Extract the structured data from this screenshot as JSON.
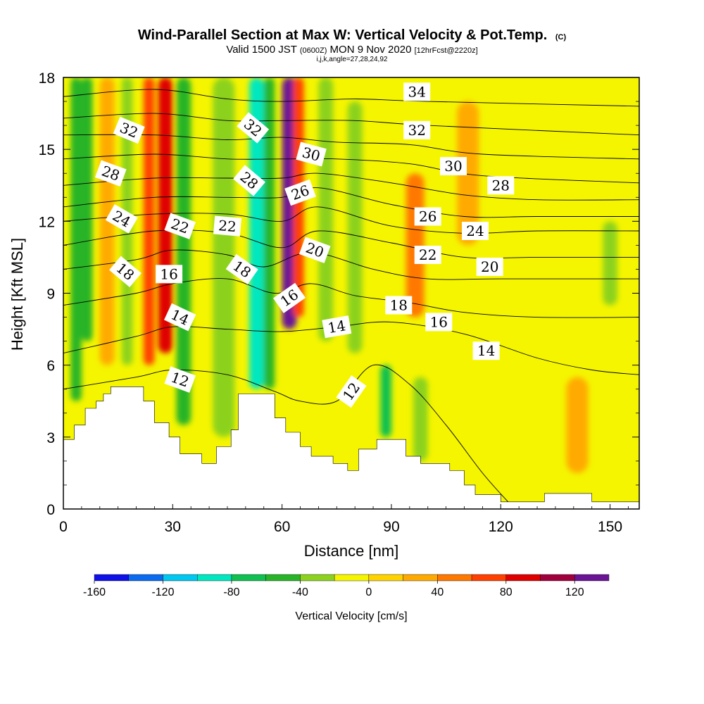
{
  "chart_data": {
    "type": "heatmap",
    "title": "Wind-Parallel Section at Max W: Vertical Velocity & Pot.Temp.",
    "title_mark": "(C)",
    "subtitle_parts": {
      "valid": "Valid 1500 JST",
      "utc": "(0600Z)",
      "date": "MON 9 Nov 2020",
      "fcst": "[12hrFcst@2220z]"
    },
    "subtitle2": "i,j,k,angle=27,28,24,92",
    "xlabel": "Distance [nm]",
    "ylabel": "Height [Kft MSL]",
    "xlim": [
      0,
      158
    ],
    "ylim": [
      0,
      18
    ],
    "x_ticks": [
      "0",
      "30",
      "60",
      "90",
      "120",
      "150"
    ],
    "y_ticks": [
      "0",
      "3",
      "6",
      "9",
      "12",
      "15",
      "18"
    ],
    "colorbar": {
      "label": "Vertical Velocity [cm/s]",
      "tick_labels": [
        "-160",
        "-120",
        "-80",
        "-40",
        "0",
        "40",
        "80",
        "120"
      ],
      "tick_values": [
        -160,
        -120,
        -80,
        -40,
        0,
        40,
        80,
        120
      ],
      "range": [
        -160,
        140
      ],
      "colors": [
        "#1010e8",
        "#0a6af0",
        "#00c8f0",
        "#00e8c0",
        "#10c050",
        "#28b428",
        "#8cd21e",
        "#f5f500",
        "#ffd200",
        "#ffaa00",
        "#ff7800",
        "#ff4000",
        "#e00000",
        "#a0003c",
        "#6a1496"
      ]
    },
    "velocity_columns": [
      {
        "x": 2,
        "w": 3,
        "ymin": 4.5,
        "ymax": 18,
        "value": -50
      },
      {
        "x": 5,
        "w": 3,
        "ymin": 7,
        "ymax": 18,
        "value": -60
      },
      {
        "x": 10,
        "w": 4,
        "ymin": 6,
        "ymax": 18,
        "value": 20
      },
      {
        "x": 16,
        "w": 3,
        "ymin": 6,
        "ymax": 18,
        "value": -40
      },
      {
        "x": 22,
        "w": 3,
        "ymin": 6,
        "ymax": 18,
        "value": 60
      },
      {
        "x": 26,
        "w": 4,
        "ymin": 6.5,
        "ymax": 18,
        "value": 95
      },
      {
        "x": 31,
        "w": 4,
        "ymin": 3.5,
        "ymax": 18,
        "value": -45
      },
      {
        "x": 41,
        "w": 6,
        "ymin": 3,
        "ymax": 18,
        "value": -35
      },
      {
        "x": 51,
        "w": 4,
        "ymin": 5,
        "ymax": 18,
        "value": -85
      },
      {
        "x": 55,
        "w": 3,
        "ymin": 5,
        "ymax": 18,
        "value": -50
      },
      {
        "x": 60,
        "w": 4,
        "ymin": 7.5,
        "ymax": 18,
        "value": 125
      },
      {
        "x": 63,
        "w": 3,
        "ymin": 8,
        "ymax": 18,
        "value": 70
      },
      {
        "x": 70,
        "w": 4,
        "ymin": 7,
        "ymax": 18,
        "value": -30
      },
      {
        "x": 78,
        "w": 4,
        "ymin": 6.5,
        "ymax": 17,
        "value": -25
      },
      {
        "x": 87,
        "w": 3,
        "ymin": 3,
        "ymax": 6,
        "value": -70
      },
      {
        "x": 94,
        "w": 5,
        "ymin": 8,
        "ymax": 14,
        "value": 45
      },
      {
        "x": 96,
        "w": 4,
        "ymin": 2,
        "ymax": 5.5,
        "value": -30
      },
      {
        "x": 108,
        "w": 6,
        "ymin": 11,
        "ymax": 17,
        "value": 25
      },
      {
        "x": 138,
        "w": 6,
        "ymin": 1.5,
        "ymax": 5.5,
        "value": 30
      },
      {
        "x": 148,
        "w": 4,
        "ymin": 8.5,
        "ymax": 12,
        "value": -25
      }
    ],
    "terrain": [
      [
        0,
        2.9
      ],
      [
        3,
        2.9
      ],
      [
        3,
        3.5
      ],
      [
        6,
        3.5
      ],
      [
        6,
        4.2
      ],
      [
        9,
        4.2
      ],
      [
        9,
        4.5
      ],
      [
        11,
        4.5
      ],
      [
        11,
        4.8
      ],
      [
        13,
        4.8
      ],
      [
        13,
        5.1
      ],
      [
        22,
        5.1
      ],
      [
        22,
        4.5
      ],
      [
        25,
        4.5
      ],
      [
        25,
        3.6
      ],
      [
        29,
        3.6
      ],
      [
        29,
        3.0
      ],
      [
        32,
        3.0
      ],
      [
        32,
        2.3
      ],
      [
        38,
        2.3
      ],
      [
        38,
        1.9
      ],
      [
        42,
        1.9
      ],
      [
        42,
        2.6
      ],
      [
        46,
        2.6
      ],
      [
        46,
        3.3
      ],
      [
        48,
        3.3
      ],
      [
        48,
        4.8
      ],
      [
        58,
        4.8
      ],
      [
        58,
        3.8
      ],
      [
        61,
        3.8
      ],
      [
        61,
        3.2
      ],
      [
        65,
        3.2
      ],
      [
        65,
        2.6
      ],
      [
        68,
        2.6
      ],
      [
        68,
        2.2
      ],
      [
        74,
        2.2
      ],
      [
        74,
        1.9
      ],
      [
        78,
        1.9
      ],
      [
        78,
        1.6
      ],
      [
        81,
        1.6
      ],
      [
        81,
        2.5
      ],
      [
        86,
        2.5
      ],
      [
        86,
        2.9
      ],
      [
        94,
        2.9
      ],
      [
        94,
        2.2
      ],
      [
        98,
        2.2
      ],
      [
        98,
        1.9
      ],
      [
        106,
        1.9
      ],
      [
        106,
        1.6
      ],
      [
        110,
        1.6
      ],
      [
        110,
        1.0
      ],
      [
        113,
        1.0
      ],
      [
        113,
        0.6
      ],
      [
        120,
        0.6
      ],
      [
        120,
        0.3
      ],
      [
        132,
        0.3
      ],
      [
        132,
        0.65
      ],
      [
        145,
        0.65
      ],
      [
        145,
        0.3
      ],
      [
        158,
        0.3
      ]
    ],
    "theta_contours": [
      {
        "level": 12,
        "pts": [
          [
            0,
            5.0
          ],
          [
            20,
            5.5
          ],
          [
            30,
            5.8
          ],
          [
            45,
            5.6
          ],
          [
            58,
            4.9
          ],
          [
            65,
            4.5
          ],
          [
            75,
            4.5
          ],
          [
            85,
            6.0
          ],
          [
            95,
            5.2
          ],
          [
            105,
            3.5
          ],
          [
            115,
            1.5
          ],
          [
            122,
            0.3
          ]
        ]
      },
      {
        "level": 14,
        "pts": [
          [
            0,
            6.5
          ],
          [
            20,
            7.2
          ],
          [
            30,
            7.6
          ],
          [
            45,
            7.5
          ],
          [
            60,
            7.4
          ],
          [
            75,
            7.6
          ],
          [
            90,
            7.8
          ],
          [
            110,
            7.3
          ],
          [
            130,
            6.3
          ],
          [
            145,
            5.8
          ],
          [
            158,
            5.6
          ]
        ]
      },
      {
        "level": 16,
        "pts": [
          [
            0,
            8.5
          ],
          [
            20,
            9.0
          ],
          [
            30,
            9.4
          ],
          [
            45,
            9.6
          ],
          [
            58,
            9.0
          ],
          [
            68,
            9.4
          ],
          [
            80,
            8.9
          ],
          [
            95,
            8.6
          ],
          [
            110,
            8.2
          ],
          [
            130,
            8.0
          ],
          [
            158,
            8.0
          ]
        ]
      },
      {
        "level": 18,
        "pts": [
          [
            0,
            10.0
          ],
          [
            20,
            10.4
          ],
          [
            30,
            10.8
          ],
          [
            45,
            10.6
          ],
          [
            55,
            10.1
          ],
          [
            68,
            10.7
          ],
          [
            85,
            10.0
          ],
          [
            100,
            9.6
          ],
          [
            120,
            9.6
          ],
          [
            158,
            9.6
          ]
        ]
      },
      {
        "level": 20,
        "pts": [
          [
            0,
            11.0
          ],
          [
            25,
            11.6
          ],
          [
            45,
            11.5
          ],
          [
            60,
            10.9
          ],
          [
            70,
            11.6
          ],
          [
            90,
            11.1
          ],
          [
            110,
            10.5
          ],
          [
            130,
            10.5
          ],
          [
            158,
            10.5
          ]
        ]
      },
      {
        "level": 22,
        "pts": [
          [
            0,
            12.0
          ],
          [
            25,
            12.3
          ],
          [
            45,
            12.3
          ],
          [
            60,
            12.0
          ],
          [
            70,
            12.6
          ],
          [
            90,
            11.8
          ],
          [
            110,
            11.5
          ],
          [
            130,
            11.6
          ],
          [
            158,
            11.6
          ]
        ]
      },
      {
        "level": 24,
        "pts": [
          [
            0,
            12.6
          ],
          [
            25,
            13.0
          ],
          [
            45,
            13.0
          ],
          [
            60,
            13.0
          ],
          [
            70,
            13.4
          ],
          [
            90,
            12.7
          ],
          [
            110,
            12.2
          ],
          [
            130,
            12.2
          ],
          [
            158,
            12.2
          ]
        ]
      },
      {
        "level": 26,
        "pts": [
          [
            0,
            13.5
          ],
          [
            25,
            13.8
          ],
          [
            45,
            13.8
          ],
          [
            60,
            13.8
          ],
          [
            70,
            14.0
          ],
          [
            90,
            13.6
          ],
          [
            110,
            13.1
          ],
          [
            130,
            12.9
          ],
          [
            158,
            12.9
          ]
        ]
      },
      {
        "level": 28,
        "pts": [
          [
            0,
            14.6
          ],
          [
            25,
            14.8
          ],
          [
            45,
            14.6
          ],
          [
            60,
            14.6
          ],
          [
            75,
            14.6
          ],
          [
            95,
            14.4
          ],
          [
            115,
            13.9
          ],
          [
            158,
            13.6
          ]
        ]
      },
      {
        "level": 30,
        "pts": [
          [
            0,
            15.6
          ],
          [
            25,
            15.6
          ],
          [
            45,
            15.4
          ],
          [
            60,
            15.5
          ],
          [
            75,
            15.3
          ],
          [
            95,
            15.2
          ],
          [
            115,
            14.8
          ],
          [
            158,
            14.6
          ]
        ]
      },
      {
        "level": 32,
        "pts": [
          [
            0,
            16.3
          ],
          [
            25,
            16.5
          ],
          [
            45,
            16.2
          ],
          [
            60,
            16.2
          ],
          [
            80,
            16.2
          ],
          [
            100,
            16.0
          ],
          [
            158,
            15.6
          ]
        ]
      },
      {
        "level": 34,
        "pts": [
          [
            0,
            17.2
          ],
          [
            25,
            17.5
          ],
          [
            45,
            17.1
          ],
          [
            60,
            17.0
          ],
          [
            80,
            17.1
          ],
          [
            100,
            17.0
          ],
          [
            158,
            16.8
          ]
        ]
      }
    ],
    "contour_labels": [
      {
        "text": "32",
        "x": 18,
        "y": 15.8,
        "rot": 22
      },
      {
        "text": "28",
        "x": 13,
        "y": 14.0,
        "rot": 20
      },
      {
        "text": "24",
        "x": 16,
        "y": 12.1,
        "rot": 30
      },
      {
        "text": "18",
        "x": 17,
        "y": 9.9,
        "rot": 40
      },
      {
        "text": "22",
        "x": 32,
        "y": 11.8,
        "rot": 20
      },
      {
        "text": "16",
        "x": 29,
        "y": 9.8,
        "rot": 0
      },
      {
        "text": "14",
        "x": 32,
        "y": 8.0,
        "rot": 25
      },
      {
        "text": "12",
        "x": 32,
        "y": 5.4,
        "rot": 20
      },
      {
        "text": "22",
        "x": 45,
        "y": 11.8,
        "rot": 5
      },
      {
        "text": "18",
        "x": 49,
        "y": 10.0,
        "rot": 35
      },
      {
        "text": "28",
        "x": 51,
        "y": 13.7,
        "rot": 40
      },
      {
        "text": "32",
        "x": 52,
        "y": 15.9,
        "rot": 40
      },
      {
        "text": "30",
        "x": 68,
        "y": 14.8,
        "rot": 15
      },
      {
        "text": "26",
        "x": 65,
        "y": 13.2,
        "rot": -20
      },
      {
        "text": "20",
        "x": 69,
        "y": 10.8,
        "rot": 20
      },
      {
        "text": "16",
        "x": 62,
        "y": 8.8,
        "rot": -35
      },
      {
        "text": "14",
        "x": 75,
        "y": 7.6,
        "rot": -10
      },
      {
        "text": "12",
        "x": 79,
        "y": 4.9,
        "rot": -55
      },
      {
        "text": "34",
        "x": 97,
        "y": 17.4,
        "rot": 0
      },
      {
        "text": "32",
        "x": 97,
        "y": 15.8,
        "rot": 0
      },
      {
        "text": "30",
        "x": 107,
        "y": 14.3,
        "rot": 0
      },
      {
        "text": "28",
        "x": 120,
        "y": 13.5,
        "rot": 0
      },
      {
        "text": "26",
        "x": 100,
        "y": 12.2,
        "rot": 0
      },
      {
        "text": "24",
        "x": 113,
        "y": 11.6,
        "rot": 0
      },
      {
        "text": "22",
        "x": 100,
        "y": 10.6,
        "rot": 0
      },
      {
        "text": "20",
        "x": 117,
        "y": 10.1,
        "rot": 0
      },
      {
        "text": "18",
        "x": 92,
        "y": 8.5,
        "rot": 0
      },
      {
        "text": "16",
        "x": 103,
        "y": 7.8,
        "rot": 0
      },
      {
        "text": "14",
        "x": 116,
        "y": 6.6,
        "rot": 0
      }
    ]
  }
}
